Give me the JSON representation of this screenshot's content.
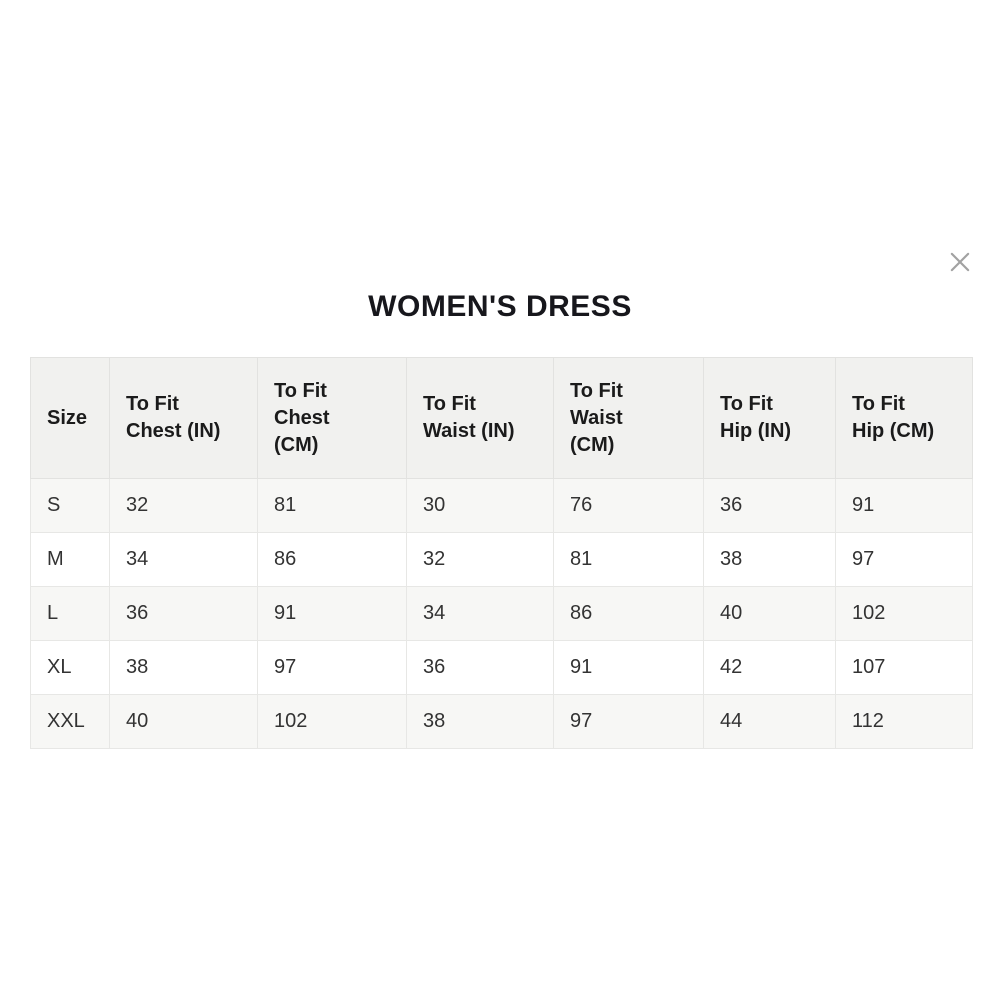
{
  "modal": {
    "title": "WOMEN'S DRESS",
    "close_icon": "x-icon"
  },
  "size_chart": {
    "columns": [
      "Size",
      "To Fit\nChest (IN)",
      "To Fit\nChest\n(CM)",
      "To Fit\nWaist (IN)",
      "To Fit\nWaist\n(CM)",
      "To Fit\nHip (IN)",
      "To Fit\nHip (CM)"
    ],
    "rows": [
      {
        "size": "S",
        "values": [
          "32",
          "81",
          "30",
          "76",
          "36",
          "91"
        ]
      },
      {
        "size": "M",
        "values": [
          "34",
          "86",
          "32",
          "81",
          "38",
          "97"
        ]
      },
      {
        "size": "L",
        "values": [
          "36",
          "91",
          "34",
          "86",
          "40",
          "102"
        ]
      },
      {
        "size": "XL",
        "values": [
          "38",
          "97",
          "36",
          "91",
          "42",
          "107"
        ]
      },
      {
        "size": "XXL",
        "values": [
          "40",
          "102",
          "38",
          "97",
          "44",
          "112"
        ]
      }
    ]
  },
  "colors": {
    "header_bg": "#f1f1ef",
    "striped_row_bg": "#f7f7f5",
    "row_bg": "#ffffff",
    "border": "#e2e2e0",
    "title_text": "#17171c",
    "header_text": "#1b1b1b",
    "cell_text": "#333333",
    "close_icon": "#a2a2a2"
  }
}
